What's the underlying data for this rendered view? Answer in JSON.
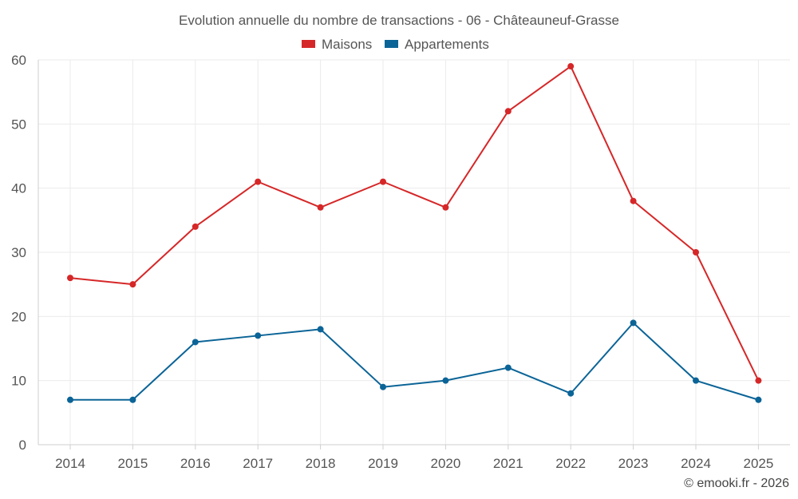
{
  "chart_data": {
    "type": "line",
    "title": "Evolution annuelle du nombre de transactions - 06 - Châteauneuf-Grasse",
    "categories": [
      "2014",
      "2015",
      "2016",
      "2017",
      "2018",
      "2019",
      "2020",
      "2021",
      "2022",
      "2023",
      "2024",
      "2025"
    ],
    "series": [
      {
        "name": "Maisons",
        "color": "#d62728",
        "values": [
          26,
          25,
          34,
          41,
          37,
          41,
          37,
          52,
          59,
          38,
          30,
          10
        ]
      },
      {
        "name": "Appartements",
        "color": "#0b6497",
        "values": [
          7,
          7,
          16,
          17,
          18,
          9,
          10,
          12,
          8,
          19,
          10,
          7
        ]
      }
    ],
    "y_ticks": [
      0,
      10,
      20,
      30,
      40,
      50,
      60
    ],
    "ylim": [
      0,
      60
    ],
    "xlabel": "",
    "ylabel": "",
    "grid": true,
    "legend_position": "top-center"
  },
  "credit": "© emooki.fr - 2026"
}
